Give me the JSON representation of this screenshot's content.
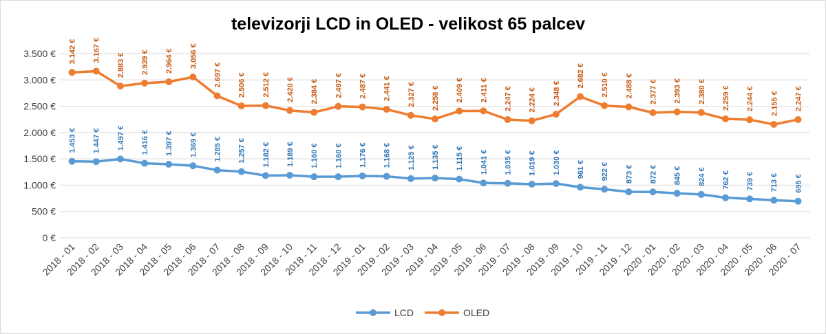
{
  "chart_data": {
    "type": "line",
    "title": "televizorji LCD in OLED - velikost 65 palcev",
    "categories": [
      "2018 - 01",
      "2018 - 02",
      "2018 - 03",
      "2018 - 04",
      "2018 - 05",
      "2018 - 06",
      "2018 - 07",
      "2018 - 08",
      "2018 - 09",
      "2018 - 10",
      "2018 - 11",
      "2018 - 12",
      "2019 - 01",
      "2019 - 02",
      "2019 - 03",
      "2019 - 04",
      "2019 - 05",
      "2019 - 06",
      "2019 - 07",
      "2019 - 08",
      "2019 - 09",
      "2019 - 10",
      "2019 - 11",
      "2019 - 12",
      "2020 - 01",
      "2020 - 02",
      "2020 - 03",
      "2020 - 04",
      "2020 - 05",
      "2020 - 06",
      "2020 - 07"
    ],
    "ylim": [
      0,
      3500
    ],
    "yticks": [
      0,
      500,
      1000,
      1500,
      2000,
      2500,
      3000,
      3500
    ],
    "ytick_labels": [
      "0 €",
      "500 €",
      "1.000 €",
      "1.500 €",
      "2.000 €",
      "2.500 €",
      "3.000 €",
      "3.500 €"
    ],
    "grid": true,
    "legend_position": "bottom",
    "series": [
      {
        "name": "LCD",
        "color": "#5b9bd5",
        "label_color": "#2e75b6",
        "values": [
          1453,
          1447,
          1497,
          1416,
          1397,
          1369,
          1285,
          1257,
          1182,
          1189,
          1160,
          1160,
          1176,
          1168,
          1125,
          1135,
          1115,
          1041,
          1035,
          1019,
          1030,
          961,
          922,
          873,
          872,
          845,
          824,
          762,
          739,
          713,
          695
        ],
        "labels": [
          "1.453 €",
          "1.447 €",
          "1.497 €",
          "1.416 €",
          "1.397 €",
          "1.369 €",
          "1.285 €",
          "1.257 €",
          "1.182 €",
          "1.189 €",
          "1.160 €",
          "1.160 €",
          "1.176 €",
          "1.168 €",
          "1.125 €",
          "1.135 €",
          "1.115 €",
          "1.041 €",
          "1.035 €",
          "1.019 €",
          "1.030 €",
          "961 €",
          "922 €",
          "873 €",
          "872 €",
          "845 €",
          "824 €",
          "762 €",
          "739 €",
          "713 €",
          "695 €"
        ]
      },
      {
        "name": "OLED",
        "color": "#ed7d31",
        "label_color": "#c55a11",
        "values": [
          3142,
          3167,
          2883,
          2939,
          2964,
          3056,
          2697,
          2506,
          2512,
          2420,
          2384,
          2497,
          2487,
          2441,
          2327,
          2258,
          2409,
          2411,
          2247,
          2224,
          2348,
          2682,
          2510,
          2488,
          2377,
          2393,
          2380,
          2259,
          2244,
          2155,
          2247
        ],
        "labels": [
          "3.142 €",
          "3.167 €",
          "2.883 €",
          "2.939 €",
          "2.964 €",
          "3.056 €",
          "2.697 €",
          "2.506 €",
          "2.512 €",
          "2.420 €",
          "2.384 €",
          "2.497 €",
          "2.487 €",
          "2.441 €",
          "2.327 €",
          "2.258 €",
          "2.409 €",
          "2.411 €",
          "2.247 €",
          "2.224 €",
          "2.348 €",
          "2.682 €",
          "2.510 €",
          "2.488 €",
          "2.377 €",
          "2.393 €",
          "2.380 €",
          "2.259 €",
          "2.244 €",
          "2.155 €",
          "2.247 €"
        ]
      }
    ]
  },
  "colors": {
    "grid": "#d9d9d9",
    "axis_text": "#404040"
  }
}
